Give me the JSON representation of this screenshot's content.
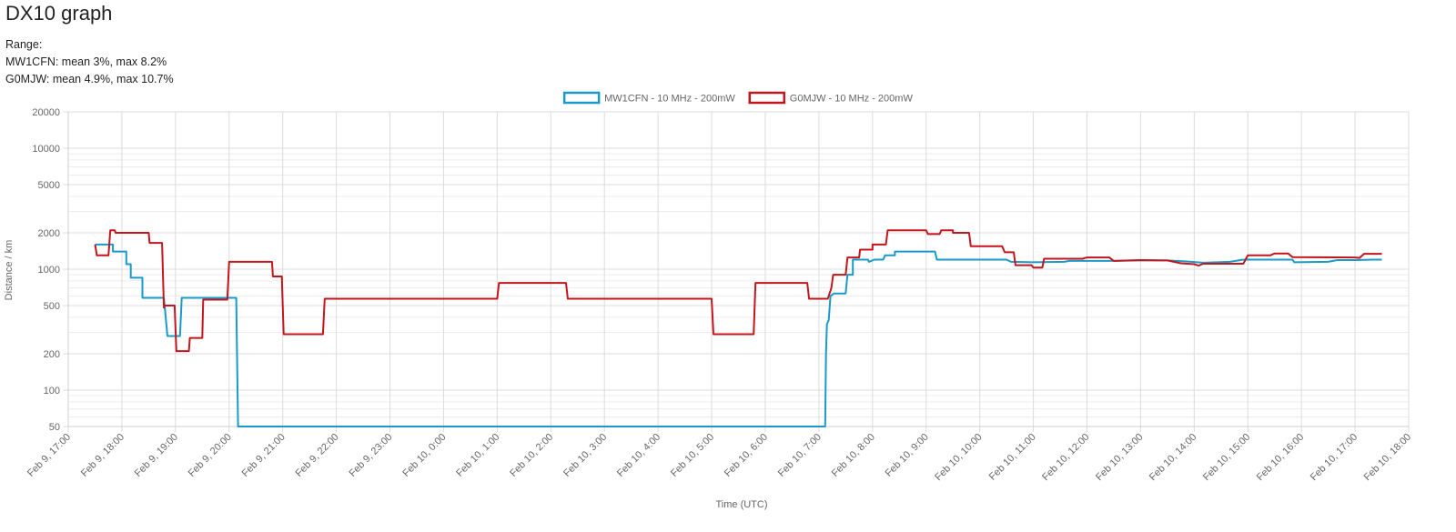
{
  "page": {
    "title": "DX10 graph",
    "range_label": "Range:",
    "stats": [
      "MW1CFN: mean 3%, max 8.2%",
      "G0MJW: mean 4.9%, max 10.7%"
    ]
  },
  "chart_data": {
    "type": "line",
    "title": "",
    "xlabel": "Time (UTC)",
    "ylabel": "Distance / km",
    "yscale": "log",
    "ylim": [
      50,
      20000
    ],
    "grid": true,
    "legend_position": "top-center",
    "yticks": [
      {
        "value": 20000,
        "label": "20000"
      },
      {
        "value": 10000,
        "label": "10000"
      },
      {
        "value": 5000,
        "label": "5000"
      },
      {
        "value": 2000,
        "label": "2000"
      },
      {
        "value": 1000,
        "label": "1000"
      },
      {
        "value": 500,
        "label": "500"
      },
      {
        "value": 200,
        "label": "200"
      },
      {
        "value": 100,
        "label": "100"
      },
      {
        "value": 50,
        "label": "50"
      }
    ],
    "yminor": [
      40000,
      30000,
      9000,
      8000,
      7000,
      6000,
      4000,
      3000,
      900,
      800,
      700,
      600,
      400,
      300,
      90,
      80,
      70,
      60
    ],
    "xticks": [
      {
        "value": "2021-02-09T17:00",
        "label": "Feb 9, 17:00"
      },
      {
        "value": "2021-02-09T18:00",
        "label": "Feb 9, 18:00"
      },
      {
        "value": "2021-02-09T19:00",
        "label": "Feb 9, 19:00"
      },
      {
        "value": "2021-02-09T20:00",
        "label": "Feb 9, 20:00"
      },
      {
        "value": "2021-02-09T21:00",
        "label": "Feb 9, 21:00"
      },
      {
        "value": "2021-02-09T22:00",
        "label": "Feb 9, 22:00"
      },
      {
        "value": "2021-02-09T23:00",
        "label": "Feb 9, 23:00"
      },
      {
        "value": "2021-02-10T00:00",
        "label": "Feb 10, 0:00"
      },
      {
        "value": "2021-02-10T01:00",
        "label": "Feb 10, 1:00"
      },
      {
        "value": "2021-02-10T02:00",
        "label": "Feb 10, 2:00"
      },
      {
        "value": "2021-02-10T03:00",
        "label": "Feb 10, 3:00"
      },
      {
        "value": "2021-02-10T04:00",
        "label": "Feb 10, 4:00"
      },
      {
        "value": "2021-02-10T05:00",
        "label": "Feb 10, 5:00"
      },
      {
        "value": "2021-02-10T06:00",
        "label": "Feb 10, 6:00"
      },
      {
        "value": "2021-02-10T07:00",
        "label": "Feb 10, 7:00"
      },
      {
        "value": "2021-02-10T08:00",
        "label": "Feb 10, 8:00"
      },
      {
        "value": "2021-02-10T09:00",
        "label": "Feb 10, 9:00"
      },
      {
        "value": "2021-02-10T10:00",
        "label": "Feb 10, 10:00"
      },
      {
        "value": "2021-02-10T11:00",
        "label": "Feb 10, 11:00"
      },
      {
        "value": "2021-02-10T12:00",
        "label": "Feb 10, 12:00"
      },
      {
        "value": "2021-02-10T13:00",
        "label": "Feb 10, 13:00"
      },
      {
        "value": "2021-02-10T14:00",
        "label": "Feb 10, 14:00"
      },
      {
        "value": "2021-02-10T15:00",
        "label": "Feb 10, 15:00"
      },
      {
        "value": "2021-02-10T16:00",
        "label": "Feb 10, 16:00"
      },
      {
        "value": "2021-02-10T17:00",
        "label": "Feb 10, 17:00"
      },
      {
        "value": "2021-02-10T18:00",
        "label": "Feb 10, 18:00"
      }
    ],
    "series": [
      {
        "name": "MW1CFN - 10 MHz - 200mW",
        "color": "#1a9ac9",
        "points": [
          [
            "2021-02-09T17:30",
            1600
          ],
          [
            "2021-02-09T17:50",
            1600
          ],
          [
            "2021-02-09T17:50",
            1400
          ],
          [
            "2021-02-09T18:05",
            1400
          ],
          [
            "2021-02-09T18:05",
            1100
          ],
          [
            "2021-02-09T18:10",
            1100
          ],
          [
            "2021-02-09T18:10",
            850
          ],
          [
            "2021-02-09T18:23",
            850
          ],
          [
            "2021-02-09T18:23",
            580
          ],
          [
            "2021-02-09T18:47",
            580
          ],
          [
            "2021-02-09T18:51",
            280
          ],
          [
            "2021-02-09T19:05",
            280
          ],
          [
            "2021-02-09T19:07",
            580
          ],
          [
            "2021-02-09T20:08",
            580
          ],
          [
            "2021-02-09T20:10",
            50
          ],
          [
            "2021-02-10T07:07",
            50
          ],
          [
            "2021-02-10T07:08",
            200
          ],
          [
            "2021-02-10T07:09",
            350
          ],
          [
            "2021-02-10T07:11",
            380
          ],
          [
            "2021-02-10T07:13",
            600
          ],
          [
            "2021-02-10T07:17",
            630
          ],
          [
            "2021-02-10T07:30",
            630
          ],
          [
            "2021-02-10T07:32",
            900
          ],
          [
            "2021-02-10T07:38",
            900
          ],
          [
            "2021-02-10T07:38",
            1200
          ],
          [
            "2021-02-10T07:55",
            1200
          ],
          [
            "2021-02-10T07:56",
            1150
          ],
          [
            "2021-02-10T08:02",
            1200
          ],
          [
            "2021-02-10T08:12",
            1200
          ],
          [
            "2021-02-10T08:14",
            1300
          ],
          [
            "2021-02-10T08:25",
            1300
          ],
          [
            "2021-02-10T08:25",
            1400
          ],
          [
            "2021-02-10T09:10",
            1400
          ],
          [
            "2021-02-10T09:12",
            1200
          ],
          [
            "2021-02-10T10:30",
            1200
          ],
          [
            "2021-02-10T10:35",
            1150
          ],
          [
            "2021-02-10T11:00",
            1140
          ],
          [
            "2021-02-10T11:35",
            1150
          ],
          [
            "2021-02-10T11:40",
            1170
          ],
          [
            "2021-02-10T12:30",
            1170
          ],
          [
            "2021-02-10T13:00",
            1180
          ],
          [
            "2021-02-10T13:30",
            1180
          ],
          [
            "2021-02-10T13:50",
            1160
          ],
          [
            "2021-02-10T14:10",
            1130
          ],
          [
            "2021-02-10T14:40",
            1150
          ],
          [
            "2021-02-10T14:55",
            1200
          ],
          [
            "2021-02-10T15:50",
            1200
          ],
          [
            "2021-02-10T15:52",
            1140
          ],
          [
            "2021-02-10T16:30",
            1150
          ],
          [
            "2021-02-10T16:40",
            1190
          ],
          [
            "2021-02-10T17:00",
            1190
          ],
          [
            "2021-02-10T17:20",
            1200
          ],
          [
            "2021-02-10T17:30",
            1200
          ]
        ]
      },
      {
        "name": "G0MJW - 10 MHz - 200mW",
        "color": "#c4151c",
        "points": [
          [
            "2021-02-09T17:30",
            1600
          ],
          [
            "2021-02-09T17:32",
            1300
          ],
          [
            "2021-02-09T17:45",
            1300
          ],
          [
            "2021-02-09T17:47",
            2100
          ],
          [
            "2021-02-09T17:52",
            2100
          ],
          [
            "2021-02-09T17:53",
            2000
          ],
          [
            "2021-02-09T18:30",
            2000
          ],
          [
            "2021-02-09T18:31",
            1650
          ],
          [
            "2021-02-09T18:45",
            1650
          ],
          [
            "2021-02-09T18:47",
            480
          ],
          [
            "2021-02-09T18:48",
            500
          ],
          [
            "2021-02-09T18:59",
            500
          ],
          [
            "2021-02-09T19:01",
            210
          ],
          [
            "2021-02-09T19:15",
            210
          ],
          [
            "2021-02-09T19:16",
            270
          ],
          [
            "2021-02-09T19:30",
            270
          ],
          [
            "2021-02-09T19:31",
            560
          ],
          [
            "2021-02-09T19:58",
            560
          ],
          [
            "2021-02-09T20:00",
            1150
          ],
          [
            "2021-02-09T20:48",
            1150
          ],
          [
            "2021-02-09T20:49",
            870
          ],
          [
            "2021-02-09T20:59",
            870
          ],
          [
            "2021-02-09T21:01",
            290
          ],
          [
            "2021-02-09T21:45",
            290
          ],
          [
            "2021-02-09T21:47",
            570
          ],
          [
            "2021-02-10T01:00",
            570
          ],
          [
            "2021-02-10T01:02",
            770
          ],
          [
            "2021-02-10T02:17",
            770
          ],
          [
            "2021-02-10T02:19",
            570
          ],
          [
            "2021-02-10T05:00",
            570
          ],
          [
            "2021-02-10T05:02",
            290
          ],
          [
            "2021-02-10T05:47",
            290
          ],
          [
            "2021-02-10T05:49",
            770
          ],
          [
            "2021-02-10T06:47",
            770
          ],
          [
            "2021-02-10T06:49",
            570
          ],
          [
            "2021-02-10T07:10",
            570
          ],
          [
            "2021-02-10T07:14",
            700
          ],
          [
            "2021-02-10T07:16",
            900
          ],
          [
            "2021-02-10T07:30",
            900
          ],
          [
            "2021-02-10T07:32",
            1250
          ],
          [
            "2021-02-10T07:45",
            1250
          ],
          [
            "2021-02-10T07:46",
            1450
          ],
          [
            "2021-02-10T08:00",
            1450
          ],
          [
            "2021-02-10T08:00",
            1600
          ],
          [
            "2021-02-10T08:15",
            1600
          ],
          [
            "2021-02-10T08:17",
            2100
          ],
          [
            "2021-02-10T09:00",
            2100
          ],
          [
            "2021-02-10T09:02",
            1950
          ],
          [
            "2021-02-10T09:15",
            1950
          ],
          [
            "2021-02-10T09:17",
            2100
          ],
          [
            "2021-02-10T09:30",
            2100
          ],
          [
            "2021-02-10T09:30",
            2000
          ],
          [
            "2021-02-10T09:48",
            2000
          ],
          [
            "2021-02-10T09:50",
            1550
          ],
          [
            "2021-02-10T10:25",
            1550
          ],
          [
            "2021-02-10T10:28",
            1380
          ],
          [
            "2021-02-10T10:38",
            1380
          ],
          [
            "2021-02-10T10:40",
            1080
          ],
          [
            "2021-02-10T10:58",
            1080
          ],
          [
            "2021-02-10T11:00",
            1030
          ],
          [
            "2021-02-10T11:10",
            1030
          ],
          [
            "2021-02-10T11:12",
            1220
          ],
          [
            "2021-02-10T11:55",
            1220
          ],
          [
            "2021-02-10T12:00",
            1250
          ],
          [
            "2021-02-10T12:25",
            1250
          ],
          [
            "2021-02-10T12:30",
            1170
          ],
          [
            "2021-02-10T13:00",
            1190
          ],
          [
            "2021-02-10T13:30",
            1180
          ],
          [
            "2021-02-10T13:45",
            1120
          ],
          [
            "2021-02-10T14:00",
            1100
          ],
          [
            "2021-02-10T14:05",
            1070
          ],
          [
            "2021-02-10T14:10",
            1110
          ],
          [
            "2021-02-10T14:55",
            1110
          ],
          [
            "2021-02-10T15:00",
            1300
          ],
          [
            "2021-02-10T15:25",
            1300
          ],
          [
            "2021-02-10T15:30",
            1350
          ],
          [
            "2021-02-10T15:45",
            1350
          ],
          [
            "2021-02-10T15:50",
            1260
          ],
          [
            "2021-02-10T17:00",
            1250
          ],
          [
            "2021-02-10T17:05",
            1240
          ],
          [
            "2021-02-10T17:10",
            1340
          ],
          [
            "2021-02-10T17:30",
            1340
          ]
        ]
      }
    ]
  }
}
